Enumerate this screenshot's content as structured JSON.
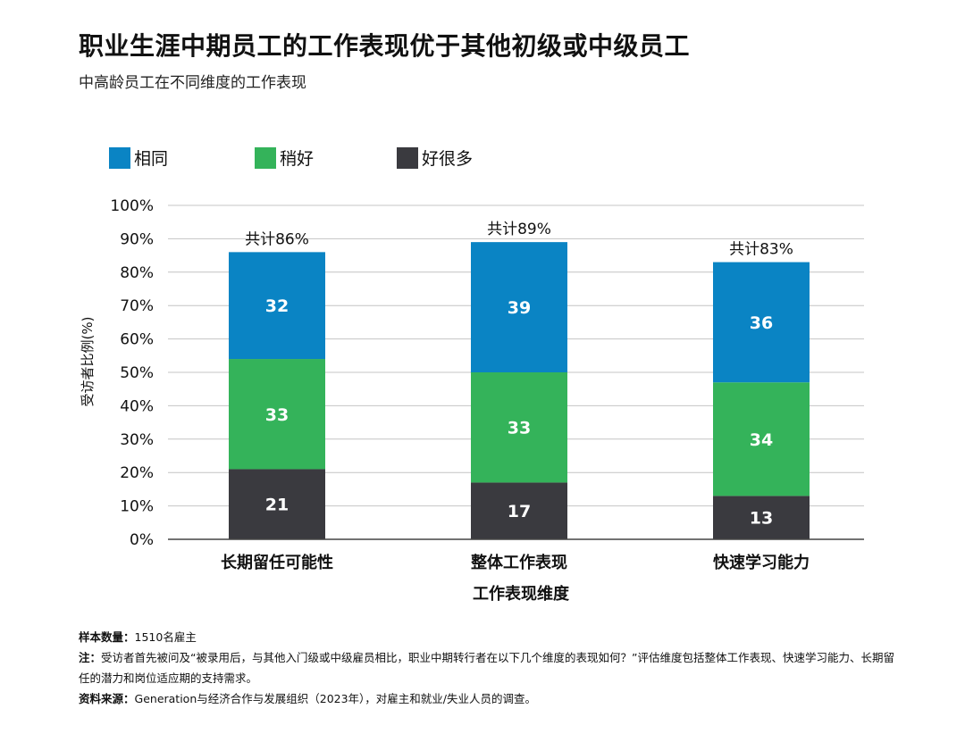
{
  "title": "职业生涯中期员工的工作表现优于其他初级或中级员工",
  "subtitle": "中高龄员工在不同维度的工作表现",
  "colors": {
    "same": "#0a84c4",
    "slightly_better": "#34b35a",
    "much_better": "#3a3a3f"
  },
  "chart_data": {
    "type": "bar",
    "stacked": true,
    "categories": [
      "长期留任可能性",
      "整体工作表现",
      "快速学习能力"
    ],
    "series": [
      {
        "name": "好很多",
        "values": [
          21,
          17,
          13
        ],
        "color": "#3a3a3f"
      },
      {
        "name": "稍好",
        "values": [
          33,
          33,
          34
        ],
        "color": "#34b35a"
      },
      {
        "name": "相同",
        "values": [
          32,
          39,
          36
        ],
        "color": "#0a84c4"
      }
    ],
    "totals": [
      86,
      89,
      83
    ],
    "total_labels": [
      "共计86%",
      "共计89%",
      "共计83%"
    ],
    "xlabel": "工作表现维度",
    "ylabel": "受访者比例(%)",
    "ylim": [
      0,
      100
    ],
    "yticks": [
      "0%",
      "10%",
      "20%",
      "30%",
      "40%",
      "50%",
      "60%",
      "70%",
      "80%",
      "90%",
      "100%"
    ],
    "grid": true,
    "legend_position": "top-left",
    "legend": [
      "相同",
      "稍好",
      "好很多"
    ]
  },
  "notes": {
    "sample_label": "样本数量：",
    "sample_value": "1510名雇主",
    "note_label": "注：",
    "note_text": "受访者首先被问及“被录用后，与其他入门级或中级雇员相比，职业中期转行者在以下几个维度的表现如何？”评估维度包括整体工作表现、快速学习能力、长期留任的潜力和岗位适应期的支持需求。",
    "source_label": "资料来源：",
    "source_text": "Generation与经济合作与发展组织（2023年），对雇主和就业/失业人员的调查。"
  }
}
